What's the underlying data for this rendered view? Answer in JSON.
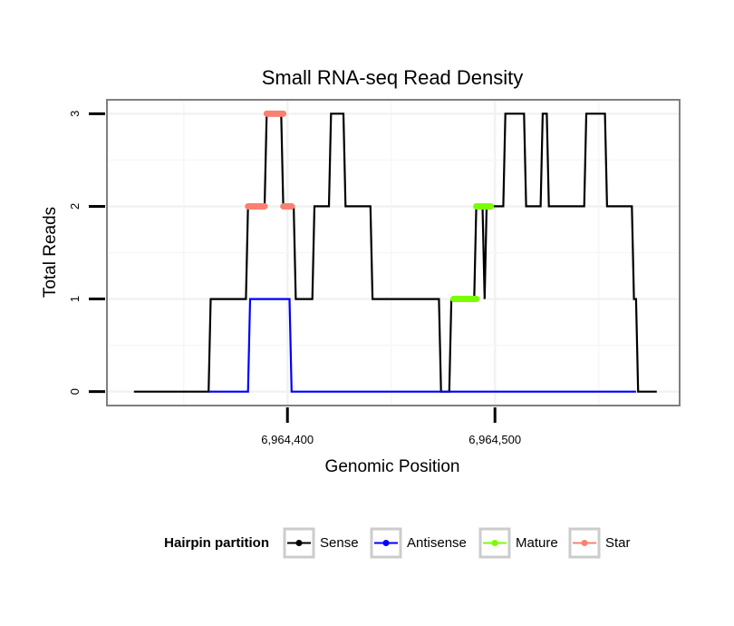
{
  "chart_data": {
    "type": "line",
    "title": "Small RNA-seq Read Density",
    "xlabel": "Genomic Position",
    "ylabel": "Total Reads",
    "xlim": [
      6964313,
      6964589
    ],
    "ylim": [
      -0.15,
      3.15
    ],
    "x_ticks": [
      6964400,
      6964500
    ],
    "x_tick_labels": [
      "6,964,400",
      "6,964,500"
    ],
    "y_ticks": [
      0,
      1,
      2,
      3
    ],
    "y_tick_labels": [
      "0",
      "1",
      "2",
      "3"
    ],
    "grid": true,
    "legend": {
      "title": "Hairpin partition",
      "position": "bottom",
      "entries": [
        {
          "key": "sense",
          "label": "Sense",
          "color": "#000000"
        },
        {
          "key": "antisense",
          "label": "Antisense",
          "color": "#0000ff"
        },
        {
          "key": "mature",
          "label": "Mature",
          "color": "#7cfc00"
        },
        {
          "key": "star",
          "label": "Star",
          "color": "#fa8072"
        }
      ]
    },
    "series": [
      {
        "name": "Sense",
        "color": "#000000",
        "x": [
          6964326,
          6964362,
          6964363,
          6964380,
          6964381,
          6964389,
          6964390,
          6964397,
          6964398,
          6964403,
          6964404,
          6964412,
          6964413,
          6964420,
          6964421,
          6964427,
          6964428,
          6964440,
          6964441,
          6964473,
          6964474,
          6964478,
          6964479,
          6964490,
          6964491,
          6964494,
          6964495,
          6964496,
          6964497,
          6964504,
          6964505,
          6964514,
          6964515,
          6964522,
          6964523,
          6964525,
          6964526,
          6964529,
          6964530,
          6964543,
          6964544,
          6964553,
          6964554,
          6964566,
          6964567,
          6964568,
          6964569,
          6964578
        ],
        "y": [
          0,
          0,
          1,
          1,
          2,
          2,
          3,
          3,
          2,
          2,
          1,
          1,
          2,
          2,
          3,
          3,
          2,
          2,
          1,
          1,
          0,
          0,
          1,
          1,
          2,
          2,
          1,
          2,
          2,
          2,
          3,
          3,
          2,
          2,
          3,
          3,
          2,
          2,
          2,
          2,
          3,
          3,
          2,
          2,
          1,
          1,
          0,
          0
        ]
      },
      {
        "name": "Antisense",
        "color": "#0000ff",
        "x": [
          6964362,
          6964381,
          6964382,
          6964401,
          6964402,
          6964568
        ],
        "y": [
          0,
          0,
          1,
          1,
          0,
          0
        ]
      }
    ],
    "highlights": [
      {
        "partition": "Mature",
        "color": "#7cfc00",
        "y": 1,
        "x_start": 6964480,
        "x_end": 6964491
      },
      {
        "partition": "Mature",
        "color": "#7cfc00",
        "y": 2,
        "x_start": 6964491,
        "x_end": 6964498
      },
      {
        "partition": "Star",
        "color": "#fa8072",
        "y": 2,
        "x_start": 6964381,
        "x_end": 6964389
      },
      {
        "partition": "Star",
        "color": "#fa8072",
        "y": 3,
        "x_start": 6964390,
        "x_end": 6964398
      },
      {
        "partition": "Star",
        "color": "#fa8072",
        "y": 2,
        "x_start": 6964398,
        "x_end": 6964402
      }
    ]
  }
}
